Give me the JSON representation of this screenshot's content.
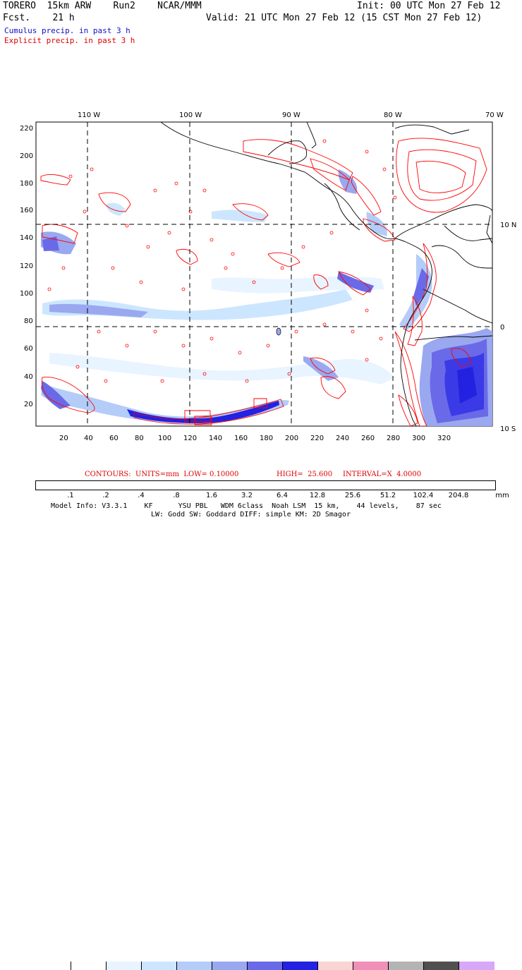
{
  "header": {
    "model_line": "TORERO  15km ARW    Run2    NCAR/MMM",
    "init": "Init: 00 UTC Mon 27 Feb 12",
    "fcst_line": "Fcst.    21 h",
    "valid": "Valid: 21 UTC Mon 27 Feb 12 (15 CST Mon 27 Feb 12)",
    "cumulus": "Cumulus precip. in past 3 h",
    "explicit": "Explicit precip. in past 3 h"
  },
  "colors": {
    "cumulus_text": "#0000cc",
    "explicit_text": "#dd0000",
    "contour_red": "#ff0000",
    "coast": "#000000",
    "grid": "#000000"
  },
  "map": {
    "lon_labels": [
      "110 W",
      "100 W",
      "90 W",
      "80 W",
      "70 W"
    ],
    "lat_labels_right": [
      "10 N",
      "0",
      "10 S"
    ],
    "y_ticks": [
      "220",
      "200",
      "180",
      "160",
      "140",
      "120",
      "100",
      "80",
      "60",
      "40",
      "20"
    ],
    "x_ticks": [
      "20",
      "40",
      "60",
      "80",
      "100",
      "120",
      "140",
      "160",
      "180",
      "200",
      "220",
      "240",
      "260",
      "280",
      "300",
      "320"
    ]
  },
  "contour_info": {
    "contours": "CONTOURS:  UNITS=mm  LOW= 0.10000",
    "high": "HIGH=  25.600",
    "interval": "INTERVAL=X  4.0000"
  },
  "legend": {
    "labels": [
      ".1",
      ".2",
      ".4",
      ".8",
      "1.6",
      "3.2",
      "6.4",
      "12.8",
      "25.6",
      "51.2",
      "102.4",
      "204.8"
    ],
    "unit": "mm",
    "colors": [
      "#ffffff",
      "#ffffff",
      "#e8f4ff",
      "#cce6ff",
      "#b4ccf8",
      "#9aa8f0",
      "#6a6ae8",
      "#2222e0",
      "#f8d4d4",
      "#f090b8",
      "#b4b4b4",
      "#505050",
      "#d8a8f8"
    ]
  },
  "footer": {
    "line1": "Model Info: V3.3.1    KF      YSU PBL   WDM 6class  Noah LSM  15 km,    44 levels,    87 sec",
    "line2": "LW: Godd SW: Goddard DIFF: simple KM: 2D Smagor"
  }
}
